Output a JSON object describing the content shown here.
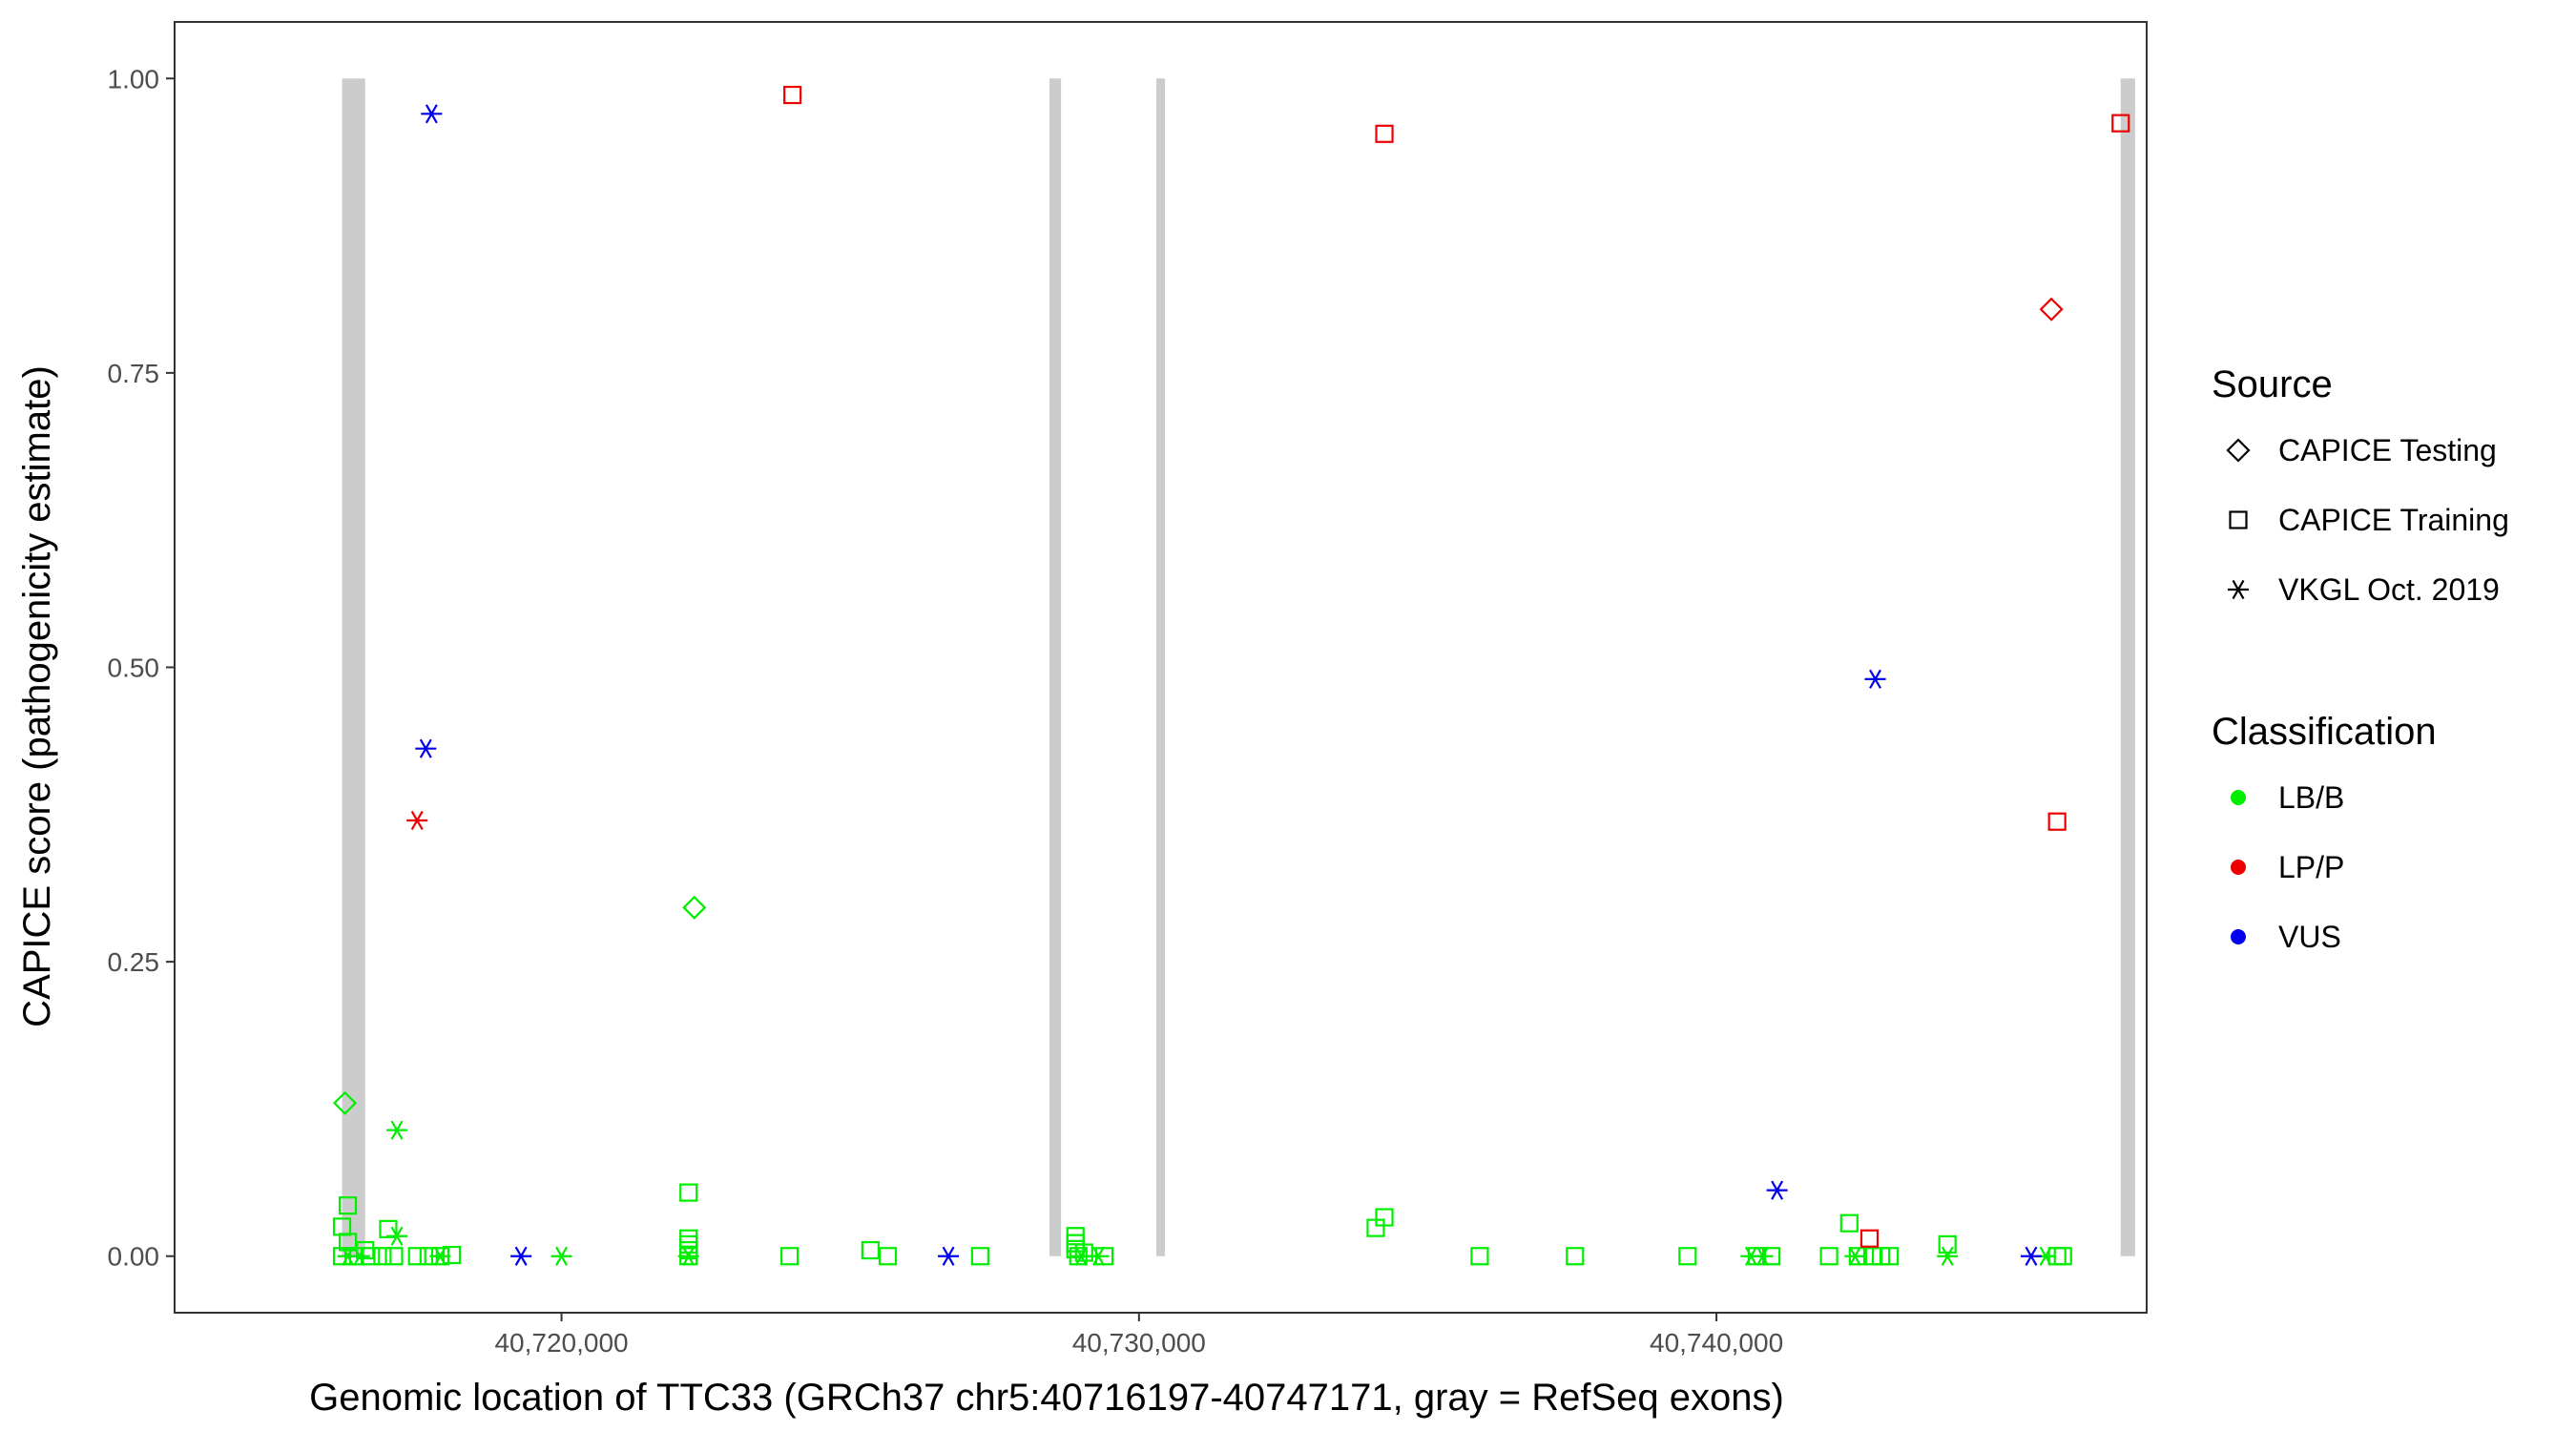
{
  "chart_data": {
    "type": "scatter",
    "xlabel": "Genomic location of TTC33 (GRCh37 chr5:40716197-40747171, gray = RefSeq exons)",
    "ylabel": "CAPICE score (pathogenicity estimate)",
    "xlim": [
      40713300,
      40747450
    ],
    "ylim": [
      -0.048,
      1.048
    ],
    "x_ticks": [
      40720000,
      40730000,
      40740000
    ],
    "x_tick_labels": [
      "40,720,000",
      "40,730,000",
      "40,740,000"
    ],
    "y_ticks": [
      0,
      0.25,
      0.5,
      0.75,
      1.0
    ],
    "y_tick_labels": [
      "0.00",
      "0.25",
      "0.50",
      "0.75",
      "1.00"
    ],
    "grid": false,
    "legend_placement": "right",
    "exon_band_color": "#cccccc",
    "exons": [
      {
        "start": 40716200,
        "end": 40716600
      },
      {
        "start": 40728450,
        "end": 40728650
      },
      {
        "start": 40730300,
        "end": 40730450
      },
      {
        "start": 40747000,
        "end": 40747250
      }
    ],
    "legend_source": {
      "title": "Source",
      "items": [
        {
          "label": "CAPICE Testing",
          "shape": "diamond"
        },
        {
          "label": "CAPICE Training",
          "shape": "square"
        },
        {
          "label": "VKGL Oct. 2019",
          "shape": "asterisk"
        }
      ]
    },
    "legend_classification": {
      "title": "Classification",
      "items": [
        {
          "label": "LB/B",
          "color": "#00ee00"
        },
        {
          "label": "LP/P",
          "color": "#ee0000"
        },
        {
          "label": "VUS",
          "color": "#0000ee"
        }
      ]
    },
    "series": [
      {
        "source": "CAPICE Testing",
        "classification": "LB/B",
        "shape": "diamond",
        "color": "#00ee00",
        "points": [
          [
            40716250,
            0.13
          ],
          [
            40722300,
            0.296
          ]
        ]
      },
      {
        "source": "CAPICE Testing",
        "classification": "LP/P",
        "shape": "diamond",
        "color": "#ee0000",
        "points": [
          [
            40745800,
            0.804
          ]
        ]
      },
      {
        "source": "CAPICE Training",
        "classification": "LB/B",
        "shape": "square",
        "color": "#00ee00",
        "points": [
          [
            40716200,
            0.025
          ],
          [
            40716300,
            0.043
          ],
          [
            40716300,
            0.012
          ],
          [
            40716200,
            0.0
          ],
          [
            40716400,
            0.0
          ],
          [
            40716600,
            0.005
          ],
          [
            40716700,
            0.0
          ],
          [
            40716900,
            0.0
          ],
          [
            40717000,
            0.023
          ],
          [
            40717100,
            0.0
          ],
          [
            40717500,
            0.0
          ],
          [
            40717700,
            0.0
          ],
          [
            40717900,
            0.0
          ],
          [
            40718100,
            0.001
          ],
          [
            40722200,
            0.054
          ],
          [
            40722200,
            0.015
          ],
          [
            40722200,
            0.01
          ],
          [
            40722200,
            0.005
          ],
          [
            40722200,
            0.0
          ],
          [
            40723950,
            0.0
          ],
          [
            40725350,
            0.005
          ],
          [
            40725650,
            0.0
          ],
          [
            40727250,
            0.0
          ],
          [
            40728900,
            0.017
          ],
          [
            40728900,
            0.011
          ],
          [
            40728900,
            0.006
          ],
          [
            40728950,
            0.0
          ],
          [
            40729050,
            0.003
          ],
          [
            40729400,
            0.0
          ],
          [
            40734100,
            0.024
          ],
          [
            40734250,
            0.033
          ],
          [
            40735900,
            0.0
          ],
          [
            40737550,
            0.0
          ],
          [
            40739500,
            0.0
          ],
          [
            40740700,
            0.0
          ],
          [
            40740950,
            0.0
          ],
          [
            40741950,
            0.0
          ],
          [
            40742300,
            0.028
          ],
          [
            40742450,
            0.0
          ],
          [
            40742700,
            0.0
          ],
          [
            40742850,
            0.0
          ],
          [
            40743000,
            0.0
          ],
          [
            40744000,
            0.01
          ],
          [
            40745900,
            0.0
          ],
          [
            40746000,
            0.0
          ]
        ]
      },
      {
        "source": "CAPICE Training",
        "classification": "LP/P",
        "shape": "square",
        "color": "#ee0000",
        "points": [
          [
            40724000,
            0.986
          ],
          [
            40734250,
            0.953
          ],
          [
            40742650,
            0.015
          ],
          [
            40745900,
            0.369
          ],
          [
            40747000,
            0.962
          ]
        ]
      },
      {
        "source": "VKGL Oct. 2019",
        "classification": "LB/B",
        "shape": "asterisk",
        "color": "#00ee00",
        "points": [
          [
            40716300,
            0.0
          ],
          [
            40716500,
            0.0
          ],
          [
            40717150,
            0.107
          ],
          [
            40717150,
            0.017
          ],
          [
            40717900,
            0.0
          ],
          [
            40720000,
            0.0
          ],
          [
            40722200,
            0.0
          ],
          [
            40729000,
            0.0
          ],
          [
            40729300,
            0.0
          ],
          [
            40740600,
            0.0
          ],
          [
            40740800,
            0.0
          ],
          [
            40742400,
            0.0
          ],
          [
            40744000,
            0.0
          ],
          [
            40745700,
            0.0
          ]
        ]
      },
      {
        "source": "VKGL Oct. 2019",
        "classification": "LP/P",
        "shape": "asterisk",
        "color": "#ee0000",
        "points": [
          [
            40717500,
            0.37
          ]
        ]
      },
      {
        "source": "VKGL Oct. 2019",
        "classification": "VUS",
        "shape": "asterisk",
        "color": "#0000ee",
        "points": [
          [
            40717750,
            0.97
          ],
          [
            40717650,
            0.431
          ],
          [
            40719300,
            0.0
          ],
          [
            40726700,
            0.0
          ],
          [
            40741050,
            0.056
          ],
          [
            40742750,
            0.49
          ],
          [
            40745450,
            0.0
          ]
        ]
      }
    ]
  }
}
